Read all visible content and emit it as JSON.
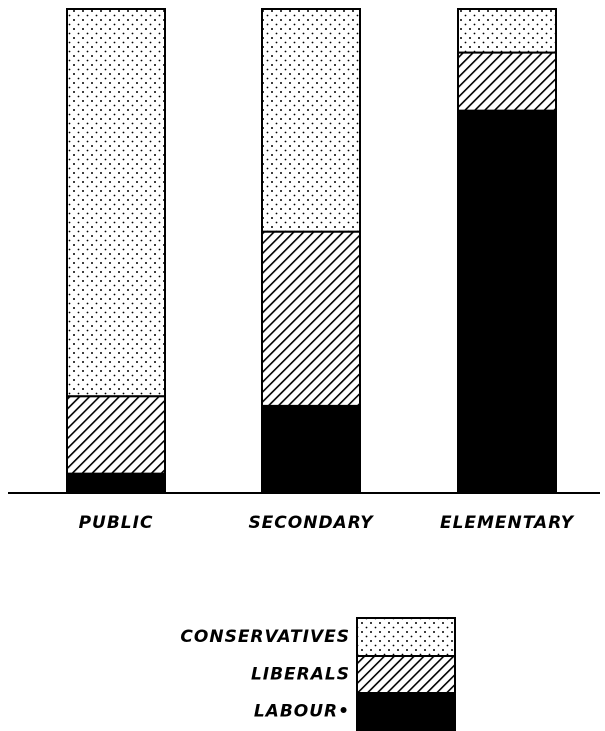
{
  "chart_data": {
    "type": "stacked_bar",
    "categories": [
      "PUBLIC",
      "SECONDARY",
      "ELEMENTARY"
    ],
    "series": [
      {
        "name": "CONSERVATIVES",
        "pattern": "dots",
        "values": [
          80,
          46,
          9
        ]
      },
      {
        "name": "LIBERALS",
        "pattern": "hatch",
        "values": [
          16,
          36,
          12
        ]
      },
      {
        "name": "LABOUR•",
        "pattern": "solid",
        "values": [
          4,
          18,
          79
        ]
      }
    ],
    "ylim": [
      0,
      100
    ]
  }
}
